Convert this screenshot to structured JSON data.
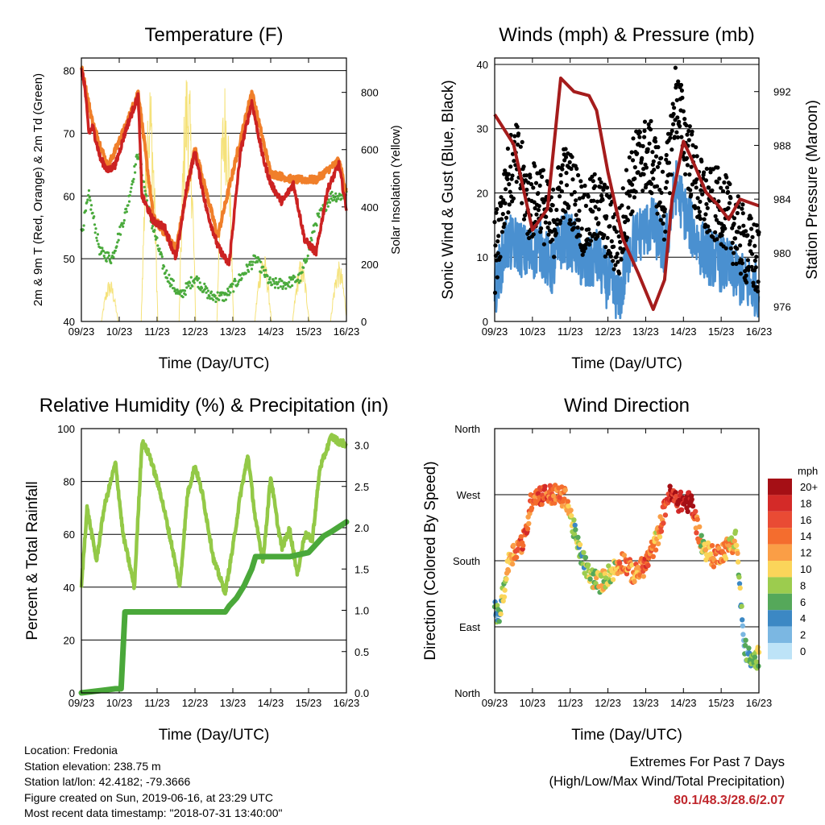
{
  "chart_data": [
    {
      "id": "temperature",
      "type": "line",
      "title": "Temperature (F)",
      "xlabel": "Time (Day/UTC)",
      "ylabel": "2m & 9m T (Red, Orange) & 2m Td (Green)",
      "y2label": "Solar Insolation (Yellow)",
      "x_ticks": [
        "09/23",
        "10/23",
        "11/23",
        "12/23",
        "13/23",
        "14/23",
        "15/23",
        "16/23"
      ],
      "ylim": [
        40,
        82
      ],
      "y_ticks": [
        40,
        50,
        60,
        70,
        80
      ],
      "y2lim": [
        0,
        920
      ],
      "y2_ticks": [
        0,
        200,
        400,
        600,
        800
      ],
      "grid": "horizontal",
      "series": [
        {
          "name": "2m T",
          "color": "#cc2222",
          "x": [
            0,
            0.08,
            0.2,
            0.3,
            0.5,
            0.7,
            0.9,
            1.2,
            1.5,
            1.6,
            1.9,
            2.2,
            2.5,
            2.8,
            3.0,
            3.3,
            3.6,
            3.9,
            4.2,
            4.5,
            4.8,
            5.0,
            5.3,
            5.6,
            5.9,
            6.2,
            6.5,
            6.8,
            7.0
          ],
          "values": [
            80,
            78,
            70,
            71,
            66,
            64,
            65,
            71,
            76,
            60,
            56,
            55,
            50,
            62,
            67,
            58,
            52,
            49,
            67,
            75,
            66,
            62,
            59,
            62,
            53,
            51,
            61,
            65,
            58
          ]
        },
        {
          "name": "9m T",
          "color": "#f07f2a",
          "x": [
            0,
            0.3,
            0.7,
            1.2,
            1.5,
            1.9,
            2.5,
            3.0,
            3.6,
            4.5,
            5.0,
            5.6,
            6.2,
            6.8,
            7.0
          ],
          "values": [
            80,
            71,
            64,
            71,
            76,
            56,
            51,
            67,
            53,
            76,
            63,
            62,
            62,
            65,
            60
          ]
        },
        {
          "name": "2m Td",
          "color": "#4aaa3c",
          "x": [
            0,
            0.2,
            0.5,
            0.8,
            1.2,
            1.5,
            1.8,
            2.2,
            2.6,
            3.0,
            3.4,
            3.8,
            4.2,
            4.6,
            5.0,
            5.4,
            5.8,
            6.2,
            6.6,
            7.0
          ],
          "values": [
            54,
            60,
            51,
            50,
            58,
            67,
            57,
            48,
            44,
            47,
            44,
            44,
            47,
            50,
            46,
            46,
            47,
            56,
            60,
            60
          ]
        },
        {
          "name": "Solar Insolation",
          "axis": "y2",
          "color": "#f5e27a",
          "peaks": [
            {
              "x": 0.75,
              "value": 150
            },
            {
              "x": 1.8,
              "value": 880
            },
            {
              "x": 2.8,
              "value": 920
            },
            {
              "x": 3.8,
              "value": 860
            },
            {
              "x": 4.8,
              "value": 250
            },
            {
              "x": 5.8,
              "value": 220
            },
            {
              "x": 6.8,
              "value": 210
            }
          ]
        }
      ]
    },
    {
      "id": "winds",
      "type": "scatter",
      "title": "Winds (mph) & Pressure (mb)",
      "xlabel": "Time (Day/UTC)",
      "ylabel": "Sonic Wind & Gust (Blue, Black)",
      "y2label": "Station Pressure (Maroon)",
      "x_ticks": [
        "09/23",
        "10/23",
        "11/23",
        "12/23",
        "13/23",
        "14/23",
        "15/23",
        "16/23"
      ],
      "ylim": [
        0,
        41
      ],
      "y_ticks": [
        0,
        10,
        20,
        30,
        40
      ],
      "y2lim": [
        974.9,
        994.5
      ],
      "y2_ticks": [
        976,
        980,
        984,
        988,
        992
      ],
      "series": [
        {
          "name": "Gust",
          "color": "#000000",
          "x": [
            0,
            0.3,
            0.6,
            0.9,
            1.2,
            1.5,
            1.8,
            2.1,
            2.4,
            2.7,
            3.0,
            3.3,
            3.6,
            3.9,
            4.2,
            4.5,
            4.8,
            5.1,
            5.4,
            5.7,
            6.0,
            6.3,
            6.6,
            7.0
          ],
          "values": [
            10,
            22,
            25,
            18,
            20,
            14,
            22,
            20,
            15,
            18,
            15,
            12,
            22,
            26,
            25,
            18,
            35,
            27,
            20,
            18,
            18,
            15,
            12,
            9
          ]
        },
        {
          "name": "Wind",
          "color": "#4a90d0",
          "x": [
            0,
            0.3,
            0.6,
            0.9,
            1.2,
            1.5,
            1.8,
            2.1,
            2.4,
            2.7,
            3.0,
            3.3,
            3.6,
            3.9,
            4.2,
            4.5,
            4.8,
            5.1,
            5.4,
            5.7,
            6.0,
            6.3,
            6.6,
            7.0
          ],
          "values": [
            5,
            12,
            12,
            10,
            12,
            8,
            13,
            12,
            8,
            10,
            6,
            3,
            12,
            14,
            15,
            11,
            21,
            16,
            12,
            10,
            9,
            8,
            6,
            5
          ]
        },
        {
          "name": "Pressure",
          "axis": "y2",
          "color": "#a51c1c",
          "x": [
            0,
            0.5,
            1.0,
            1.4,
            1.75,
            2.1,
            2.5,
            2.7,
            3.0,
            3.4,
            3.8,
            4.2,
            4.5,
            4.7,
            5.0,
            5.3,
            5.6,
            5.9,
            6.2,
            6.5,
            7.0
          ],
          "values": [
            990.3,
            988.1,
            981.7,
            983.3,
            993.0,
            992.0,
            991.7,
            990.6,
            986.0,
            981.0,
            978.5,
            975.8,
            978.0,
            984.0,
            988.3,
            986.5,
            984.5,
            983.6,
            982.5,
            984.0,
            983.5
          ]
        }
      ]
    },
    {
      "id": "humidity",
      "type": "line",
      "title": "Relative Humidity (%) & Precipitation (in)",
      "xlabel": "Time (Day/UTC)",
      "ylabel": "Percent & Total Rainfall",
      "x_ticks": [
        "09/23",
        "10/23",
        "11/23",
        "12/23",
        "13/23",
        "14/23",
        "15/23",
        "16/23"
      ],
      "ylim": [
        0,
        100
      ],
      "y_ticks": [
        0,
        20,
        40,
        60,
        80,
        100
      ],
      "y2lim": [
        0,
        3.2
      ],
      "y2_ticks": [
        "0.0",
        "0.5",
        "1.0",
        "1.5",
        "2.0",
        "2.5",
        "3.0"
      ],
      "series": [
        {
          "name": "Relative Humidity",
          "color": "#93c947",
          "x": [
            0,
            0.15,
            0.4,
            0.6,
            0.9,
            1.1,
            1.4,
            1.6,
            1.8,
            2.1,
            2.4,
            2.6,
            2.8,
            3.0,
            3.2,
            3.5,
            3.8,
            4.0,
            4.2,
            4.4,
            4.6,
            4.8,
            5.0,
            5.2,
            5.3,
            5.5,
            5.7,
            5.9,
            6.1,
            6.3,
            6.6,
            6.8,
            7.0
          ],
          "values": [
            40,
            70,
            50,
            70,
            87,
            60,
            40,
            95,
            90,
            75,
            55,
            40,
            75,
            86,
            75,
            50,
            38,
            55,
            75,
            90,
            65,
            50,
            82,
            62,
            55,
            62,
            45,
            60,
            58,
            85,
            97,
            95,
            94
          ]
        },
        {
          "name": "Total Precipitation",
          "axis": "y2",
          "color": "#4aa83a",
          "x": [
            0,
            0.9,
            1.05,
            1.15,
            1.3,
            3.2,
            3.8,
            3.9,
            4.1,
            4.3,
            4.5,
            4.6,
            5.5,
            6.0,
            6.2,
            6.4,
            6.6,
            7.0
          ],
          "values": [
            0.0,
            0.05,
            0.05,
            0.98,
            0.98,
            0.98,
            0.98,
            1.05,
            1.15,
            1.3,
            1.5,
            1.65,
            1.65,
            1.7,
            1.8,
            1.9,
            1.95,
            2.07
          ]
        }
      ]
    },
    {
      "id": "direction",
      "type": "scatter",
      "title": "Wind Direction",
      "xlabel": "Time (Day/UTC)",
      "ylabel": "Direction (Colored By Speed)",
      "x_ticks": [
        "09/23",
        "10/23",
        "11/23",
        "12/23",
        "13/23",
        "14/23",
        "15/23",
        "16/23"
      ],
      "y_ticks": [
        "North",
        "East",
        "South",
        "West",
        "North"
      ],
      "ylim": [
        0,
        360
      ],
      "x": [
        0,
        0.1,
        0.4,
        0.8,
        1.0,
        1.3,
        1.6,
        1.9,
        2.2,
        2.5,
        2.8,
        3.1,
        3.4,
        3.7,
        4.0,
        4.3,
        4.6,
        4.9,
        5.2,
        5.5,
        5.8,
        6.1,
        6.4,
        6.6,
        6.8,
        7.0
      ],
      "values": [
        120,
        100,
        185,
        210,
        270,
        270,
        270,
        265,
        200,
        160,
        150,
        165,
        180,
        160,
        175,
        210,
        270,
        260,
        260,
        200,
        185,
        195,
        210,
        65,
        40,
        50
      ],
      "speeds": [
        4,
        6,
        12,
        16,
        14,
        16,
        14,
        12,
        6,
        8,
        10,
        8,
        14,
        12,
        16,
        10,
        18,
        20,
        20,
        8,
        14,
        12,
        10,
        4,
        6,
        8
      ],
      "legend": {
        "title": "mph",
        "labels": [
          "20+",
          "18",
          "16",
          "14",
          "12",
          "10",
          "8",
          "6",
          "4",
          "2",
          "0"
        ],
        "colors": [
          "#a50f15",
          "#d42a28",
          "#e94b34",
          "#f46d2e",
          "#fa9e46",
          "#fbd55a",
          "#9ccc4e",
          "#55a85a",
          "#3c88c4",
          "#7bb7e2",
          "#bde3f7"
        ]
      }
    }
  ],
  "footer": {
    "location": "Location: Fredonia",
    "elevation": "Station elevation: 238.75 m",
    "latlon": "Station lat/lon: 42.4182; -79.3666",
    "created": "Figure created on Sun, 2019-06-16, at 23:29 UTC",
    "recent": "Most recent data timestamp: \"2018-07-31 13:40:00\""
  },
  "extremes": {
    "title": "Extremes For Past 7 Days",
    "subtitle": "(High/Low/Max Wind/Total Precipitation)",
    "values": "80.1/48.3/28.6/2.07"
  }
}
